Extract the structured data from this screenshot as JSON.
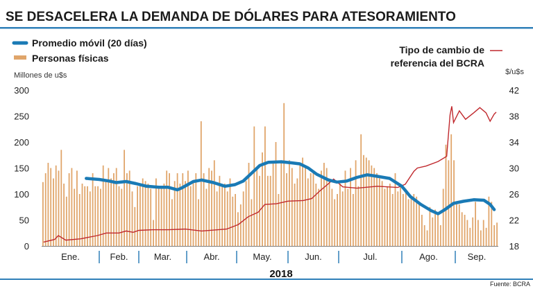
{
  "chart_data": {
    "type": "bar+line",
    "title": "SE DESACELERA LA DEMANDA DE DÓLARES PARA ATESORAMIENTO",
    "xlabel": "2018",
    "ylabel_left": "Millones de u$s",
    "ylabel_right": "$/u$s",
    "ylim_left": [
      0,
      300
    ],
    "ylim_right": [
      18,
      42
    ],
    "yticks_left": [
      "0",
      "50",
      "100",
      "150",
      "200",
      "250",
      "300"
    ],
    "yticks_right": [
      "18",
      "22",
      "26",
      "30",
      "34",
      "38",
      "42"
    ],
    "months": [
      "Ene.",
      "Feb.",
      "Mar.",
      "Abr.",
      "May.",
      "Jun.",
      "Jul.",
      "Ago.",
      "Sep."
    ],
    "legend": {
      "ma": "Promedio móvil (20 días)",
      "bars": "Personas físicas",
      "fx_line1": "Tipo de cambio de",
      "fx_line2": "referencia del BCRA"
    },
    "colors": {
      "bars": "#e0a56a",
      "ma": "#1a7ab5",
      "fx": "#c0282d",
      "rule": "#2f7fb8"
    },
    "source": "Fuente: BCRA",
    "bars_by_month": [
      [
        123,
        140,
        160,
        150,
        130,
        155,
        145,
        185,
        120,
        95,
        140,
        150,
        110,
        145,
        100,
        120,
        115,
        115,
        105,
        140,
        115,
        115
      ],
      [
        110,
        155,
        125,
        150,
        130,
        140,
        150,
        115,
        110,
        185,
        140,
        145,
        105,
        75,
        115
      ],
      [
        120,
        130,
        125,
        120,
        110,
        50,
        130,
        115,
        110,
        120,
        145,
        140,
        90,
        125,
        140,
        120,
        140,
        125
      ],
      [
        145,
        115,
        125,
        140,
        90,
        240,
        140,
        110,
        150,
        145,
        165,
        105,
        135,
        115,
        120,
        105,
        130,
        95,
        100
      ],
      [
        65,
        80,
        105,
        125,
        160,
        90,
        230,
        150,
        135,
        180,
        230,
        135,
        135,
        160,
        200,
        100,
        165,
        275,
        140
      ],
      [
        165,
        150,
        120,
        130,
        160,
        170,
        150,
        130,
        140,
        145,
        120,
        110,
        145,
        160,
        150,
        130,
        110,
        90,
        100
      ],
      [
        120,
        105,
        145,
        110,
        150,
        100,
        165,
        115,
        215,
        175,
        170,
        165,
        155,
        150,
        140,
        130,
        125,
        110,
        115,
        120,
        100,
        140,
        105,
        115
      ],
      [
        100,
        110,
        90,
        95,
        100,
        95,
        80,
        60,
        40,
        30,
        75,
        55,
        70,
        65,
        40,
        110,
        195,
        165,
        215,
        165
      ],
      [
        85,
        80,
        65,
        60,
        50,
        35,
        55,
        85,
        50,
        30,
        50,
        35,
        95,
        85,
        40,
        45
      ]
    ],
    "moving_average": [
      [
        "01-25",
        130
      ],
      [
        "02-01",
        128
      ],
      [
        "02-08",
        125
      ],
      [
        "02-13",
        122
      ],
      [
        "02-20",
        124
      ],
      [
        "02-27",
        120
      ],
      [
        "03-06",
        115
      ],
      [
        "03-14",
        113
      ],
      [
        "03-20",
        113
      ],
      [
        "03-26",
        108
      ],
      [
        "03-29",
        112
      ],
      [
        "04-05",
        124
      ],
      [
        "04-10",
        127
      ],
      [
        "04-17",
        122
      ],
      [
        "04-24",
        115
      ],
      [
        "04-30",
        118
      ],
      [
        "05-05",
        125
      ],
      [
        "05-10",
        140
      ],
      [
        "05-15",
        155
      ],
      [
        "05-20",
        161
      ],
      [
        "05-28",
        162
      ],
      [
        "06-03",
        160
      ],
      [
        "06-08",
        158
      ],
      [
        "06-13",
        150
      ],
      [
        "06-18",
        138
      ],
      [
        "06-25",
        127
      ],
      [
        "06-30",
        123
      ],
      [
        "07-05",
        125
      ],
      [
        "07-10",
        132
      ],
      [
        "07-15",
        137
      ],
      [
        "07-20",
        134
      ],
      [
        "07-26",
        130
      ],
      [
        "08-01",
        115
      ],
      [
        "08-06",
        95
      ],
      [
        "08-12",
        80
      ],
      [
        "08-18",
        68
      ],
      [
        "08-22",
        62
      ],
      [
        "08-26",
        70
      ],
      [
        "08-31",
        82
      ],
      [
        "09-05",
        86
      ],
      [
        "09-10",
        89
      ],
      [
        "09-15",
        88
      ],
      [
        "09-18",
        80
      ],
      [
        "09-20",
        70
      ]
    ],
    "exchange_rate": [
      [
        "01-02",
        18.6
      ],
      [
        "01-08",
        19.0
      ],
      [
        "01-10",
        19.6
      ],
      [
        "01-14",
        18.9
      ],
      [
        "01-22",
        19.1
      ],
      [
        "01-31",
        19.6
      ],
      [
        "02-06",
        20.0
      ],
      [
        "02-15",
        20.0
      ],
      [
        "02-20",
        20.3
      ],
      [
        "02-25",
        20.1
      ],
      [
        "03-01",
        20.4
      ],
      [
        "03-10",
        20.5
      ],
      [
        "03-20",
        20.5
      ],
      [
        "03-31",
        20.6
      ],
      [
        "04-10",
        20.3
      ],
      [
        "04-25",
        20.6
      ],
      [
        "05-02",
        21.3
      ],
      [
        "05-08",
        22.5
      ],
      [
        "05-14",
        23.2
      ],
      [
        "05-18",
        24.4
      ],
      [
        "05-25",
        24.5
      ],
      [
        "06-01",
        24.9
      ],
      [
        "06-10",
        25.0
      ],
      [
        "06-15",
        25.3
      ],
      [
        "06-20",
        26.5
      ],
      [
        "06-25",
        27.6
      ],
      [
        "06-28",
        28.3
      ],
      [
        "07-03",
        27.1
      ],
      [
        "07-10",
        26.9
      ],
      [
        "07-20",
        27.2
      ],
      [
        "07-30",
        27.0
      ],
      [
        "08-03",
        27.5
      ],
      [
        "08-08",
        29.5
      ],
      [
        "08-10",
        30.0
      ],
      [
        "08-15",
        30.3
      ],
      [
        "08-22",
        31.0
      ],
      [
        "08-27",
        31.8
      ],
      [
        "08-29",
        38.2
      ],
      [
        "08-30",
        39.5
      ],
      [
        "08-31",
        37.0
      ],
      [
        "09-03",
        38.8
      ],
      [
        "09-06",
        37.5
      ],
      [
        "09-10",
        38.5
      ],
      [
        "09-13",
        39.3
      ],
      [
        "09-16",
        38.5
      ],
      [
        "09-18",
        37.2
      ],
      [
        "09-20",
        38.3
      ],
      [
        "09-21",
        38.6
      ]
    ]
  }
}
